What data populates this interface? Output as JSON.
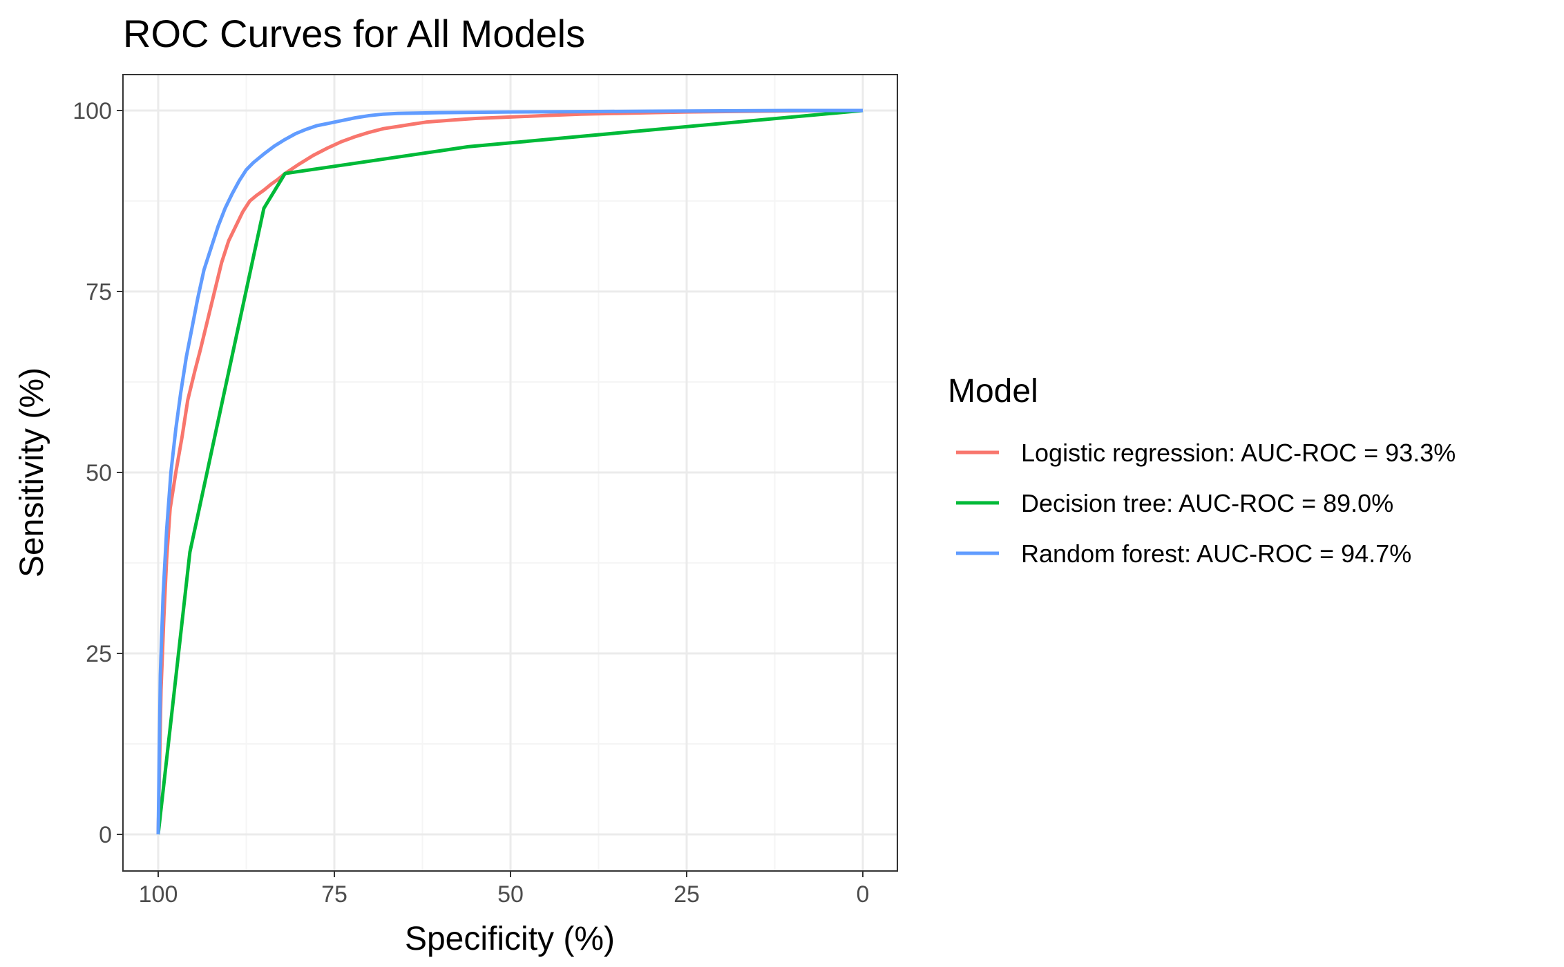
{
  "chart_data": {
    "type": "line",
    "title": "ROC Curves for All Models",
    "xlabel": "Specificity (%)",
    "ylabel": "Sensitivity (%)",
    "xlim": [
      100,
      0
    ],
    "ylim": [
      0,
      100
    ],
    "x_ticks": [
      100,
      75,
      50,
      25,
      0
    ],
    "y_ticks": [
      0,
      25,
      50,
      75,
      100
    ],
    "x_tick_labels": [
      "100",
      "75",
      "50",
      "25",
      "0"
    ],
    "y_tick_labels": [
      "0",
      "25",
      "50",
      "75",
      "100"
    ],
    "x_reversed": true,
    "grid": true,
    "legend_title": "Model",
    "legend_position": "right",
    "series": [
      {
        "name": "Logistic regression: AUC-ROC = 93.3%",
        "color": "#F8766D",
        "x": [
          100,
          99.6,
          99.2,
          98.8,
          98.3,
          97.5,
          96.6,
          95.8,
          94.8,
          94.0,
          93.0,
          92.0,
          91.0,
          90.0,
          89.0,
          88.0,
          87.0,
          86.0,
          85.0,
          84.0,
          83.0,
          82.0,
          80.0,
          78.0,
          76.0,
          74.0,
          72.0,
          70.0,
          68.0,
          66.0,
          64.0,
          62.0,
          58.0,
          55.0,
          50.0,
          45.0,
          40.0,
          35.0,
          30.0,
          25.0,
          15.0,
          5.0,
          0.0
        ],
        "y": [
          0,
          20,
          30,
          38,
          45,
          50,
          55,
          60,
          64,
          67,
          71,
          75,
          79,
          82,
          84,
          86,
          87.5,
          88.3,
          89,
          89.8,
          90.5,
          91.3,
          92.6,
          93.8,
          94.8,
          95.7,
          96.4,
          97.0,
          97.5,
          97.8,
          98.1,
          98.4,
          98.7,
          98.9,
          99.1,
          99.3,
          99.5,
          99.6,
          99.7,
          99.8,
          99.9,
          100,
          100
        ]
      },
      {
        "name": "Decision tree: AUC-ROC = 89.0%",
        "color": "#00BA38",
        "x": [
          100,
          95.5,
          85.0,
          82.0,
          56.0,
          0
        ],
        "y": [
          0,
          39.0,
          86.5,
          91.3,
          95.0,
          100
        ]
      },
      {
        "name": "Random forest: AUC-ROC = 94.7%",
        "color": "#619CFF",
        "x": [
          100,
          99.7,
          99.3,
          98.8,
          98.2,
          97.5,
          96.8,
          96.0,
          95.2,
          94.4,
          93.5,
          92.5,
          91.5,
          90.5,
          89.5,
          88.5,
          87.5,
          86.5,
          85.0,
          83.5,
          82.0,
          80.5,
          79.0,
          77.5,
          76.0,
          75.0,
          74.0,
          72.0,
          70.0,
          68.0,
          66.0,
          60.0,
          50.0,
          40.0,
          30.0,
          20.0,
          10.0,
          0.0
        ],
        "y": [
          0,
          22,
          33,
          42,
          50,
          56,
          61,
          66,
          70,
          74,
          78,
          81,
          84,
          86.5,
          88.5,
          90.3,
          91.8,
          92.8,
          94.0,
          95.1,
          96.0,
          96.8,
          97.4,
          97.9,
          98.2,
          98.4,
          98.6,
          99.0,
          99.3,
          99.5,
          99.6,
          99.7,
          99.8,
          99.85,
          99.9,
          99.95,
          100,
          100
        ]
      }
    ]
  },
  "colors": {
    "panel_border": "#333333",
    "grid_major": "#EBEBEB",
    "grid_minor": "#F5F5F5",
    "tick_text": "#4D4D4D"
  }
}
